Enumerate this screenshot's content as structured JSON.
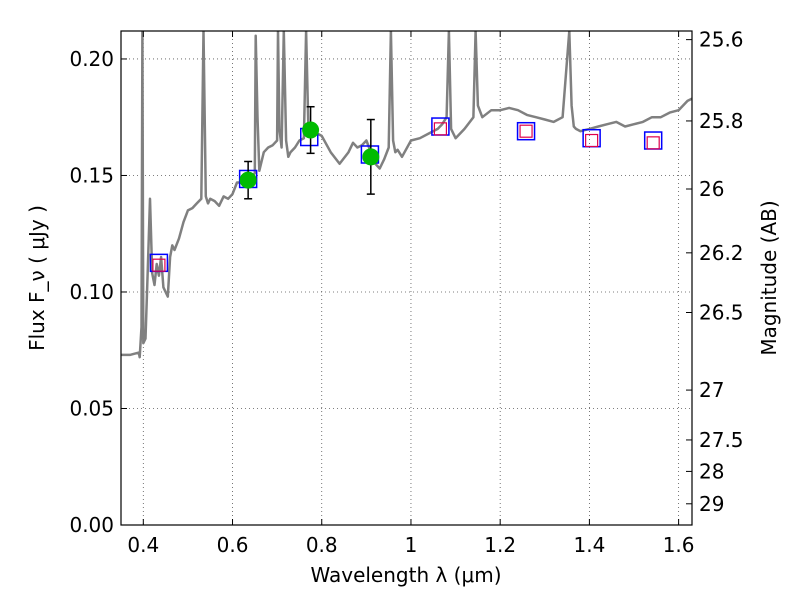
{
  "chart_data": {
    "type": "scatter",
    "xlabel": "Wavelength λ (μm)",
    "ylabel": "Flux F_ν ( μJy )",
    "ylabel_right": "Magnitude (AB)",
    "xlim": [
      0.35,
      1.63
    ],
    "ylim": [
      0.0,
      0.212
    ],
    "grid": true,
    "x_ticks": [
      0.4,
      0.6,
      0.8,
      1.0,
      1.2,
      1.4,
      1.6
    ],
    "x_tick_labels": [
      "0.4",
      "0.6",
      "0.8",
      "1",
      "1.2",
      "1.4",
      "1.6"
    ],
    "y_ticks": [
      0.0,
      0.05,
      0.1,
      0.15,
      0.2
    ],
    "y_tick_labels": [
      "0.00",
      "0.05",
      "0.10",
      "0.15",
      "0.20"
    ],
    "right_ticks": [
      {
        "flux": 0.2083,
        "label": "25.6"
      },
      {
        "flux": 0.1734,
        "label": "25.8"
      },
      {
        "flux": 0.1442,
        "label": "26"
      },
      {
        "flux": 0.1168,
        "label": "26.2"
      },
      {
        "flux": 0.0912,
        "label": "26.5"
      },
      {
        "flux": 0.0579,
        "label": "27"
      },
      {
        "flux": 0.0365,
        "label": "27.5"
      },
      {
        "flux": 0.023,
        "label": "28"
      },
      {
        "flux": 0.0091,
        "label": "29"
      }
    ],
    "colors": {
      "model": "#808080",
      "observed": "#00bb00",
      "model_band": "#0000ff",
      "nir_band": "#e0004a",
      "error_bar": "#000000",
      "grid": "#555555"
    },
    "series": [
      {
        "role": "model-spectrum",
        "x": [
          0.35,
          0.37,
          0.39,
          0.392,
          0.396,
          0.398,
          0.4,
          0.405,
          0.41,
          0.415,
          0.42,
          0.425,
          0.43,
          0.435,
          0.44,
          0.445,
          0.45,
          0.455,
          0.46,
          0.465,
          0.47,
          0.48,
          0.49,
          0.5,
          0.51,
          0.52,
          0.53,
          0.535,
          0.54,
          0.545,
          0.55,
          0.56,
          0.57,
          0.58,
          0.59,
          0.6,
          0.61,
          0.62,
          0.63,
          0.64,
          0.65,
          0.652,
          0.656,
          0.66,
          0.67,
          0.68,
          0.69,
          0.7,
          0.702,
          0.705,
          0.71,
          0.715,
          0.72,
          0.725,
          0.73,
          0.74,
          0.75,
          0.76,
          0.765,
          0.77,
          0.78,
          0.79,
          0.8,
          0.82,
          0.84,
          0.86,
          0.87,
          0.88,
          0.89,
          0.9,
          0.91,
          0.92,
          0.93,
          0.94,
          0.95,
          0.955,
          0.96,
          0.965,
          0.97,
          0.98,
          1.0,
          1.02,
          1.04,
          1.06,
          1.07,
          1.08,
          1.085,
          1.09,
          1.1,
          1.12,
          1.14,
          1.145,
          1.15,
          1.16,
          1.18,
          1.2,
          1.22,
          1.24,
          1.26,
          1.28,
          1.3,
          1.32,
          1.34,
          1.355,
          1.36,
          1.365,
          1.37,
          1.38,
          1.4,
          1.42,
          1.44,
          1.46,
          1.48,
          1.5,
          1.52,
          1.54,
          1.56,
          1.58,
          1.6,
          1.62,
          1.63
        ],
        "y": [
          0.073,
          0.073,
          0.074,
          0.072,
          0.085,
          0.212,
          0.078,
          0.08,
          0.11,
          0.14,
          0.108,
          0.103,
          0.112,
          0.107,
          0.115,
          0.102,
          0.1,
          0.098,
          0.115,
          0.12,
          0.118,
          0.123,
          0.13,
          0.135,
          0.136,
          0.138,
          0.14,
          0.212,
          0.141,
          0.138,
          0.14,
          0.139,
          0.137,
          0.141,
          0.14,
          0.142,
          0.147,
          0.147,
          0.148,
          0.149,
          0.151,
          0.21,
          0.175,
          0.152,
          0.16,
          0.162,
          0.163,
          0.165,
          0.212,
          0.17,
          0.162,
          0.212,
          0.165,
          0.158,
          0.16,
          0.162,
          0.165,
          0.166,
          0.212,
          0.17,
          0.168,
          0.168,
          0.167,
          0.16,
          0.155,
          0.16,
          0.164,
          0.162,
          0.163,
          0.165,
          0.16,
          0.155,
          0.153,
          0.157,
          0.162,
          0.212,
          0.165,
          0.16,
          0.161,
          0.158,
          0.165,
          0.166,
          0.168,
          0.17,
          0.172,
          0.175,
          0.212,
          0.17,
          0.166,
          0.17,
          0.175,
          0.212,
          0.18,
          0.175,
          0.178,
          0.178,
          0.179,
          0.178,
          0.176,
          0.175,
          0.174,
          0.173,
          0.175,
          0.212,
          0.18,
          0.171,
          0.17,
          0.169,
          0.17,
          0.171,
          0.172,
          0.173,
          0.171,
          0.172,
          0.173,
          0.175,
          0.175,
          0.177,
          0.178,
          0.182,
          0.183
        ]
      },
      {
        "role": "model-band-flux",
        "x": [
          0.435,
          0.635,
          0.772,
          0.908,
          1.066,
          1.258,
          1.405,
          1.543
        ],
        "y": [
          0.1125,
          0.1485,
          0.1665,
          0.159,
          0.171,
          0.169,
          0.166,
          0.165
        ]
      },
      {
        "role": "nir-band-flux",
        "x": [
          0.435,
          1.066,
          1.258,
          1.405,
          1.543
        ],
        "y": [
          0.1115,
          0.17,
          0.169,
          0.165,
          0.164
        ]
      },
      {
        "role": "observed-flux",
        "x": [
          0.635,
          0.775,
          0.91
        ],
        "y": [
          0.148,
          0.1695,
          0.158
        ],
        "err": [
          0.008,
          0.01,
          0.016
        ]
      }
    ]
  }
}
